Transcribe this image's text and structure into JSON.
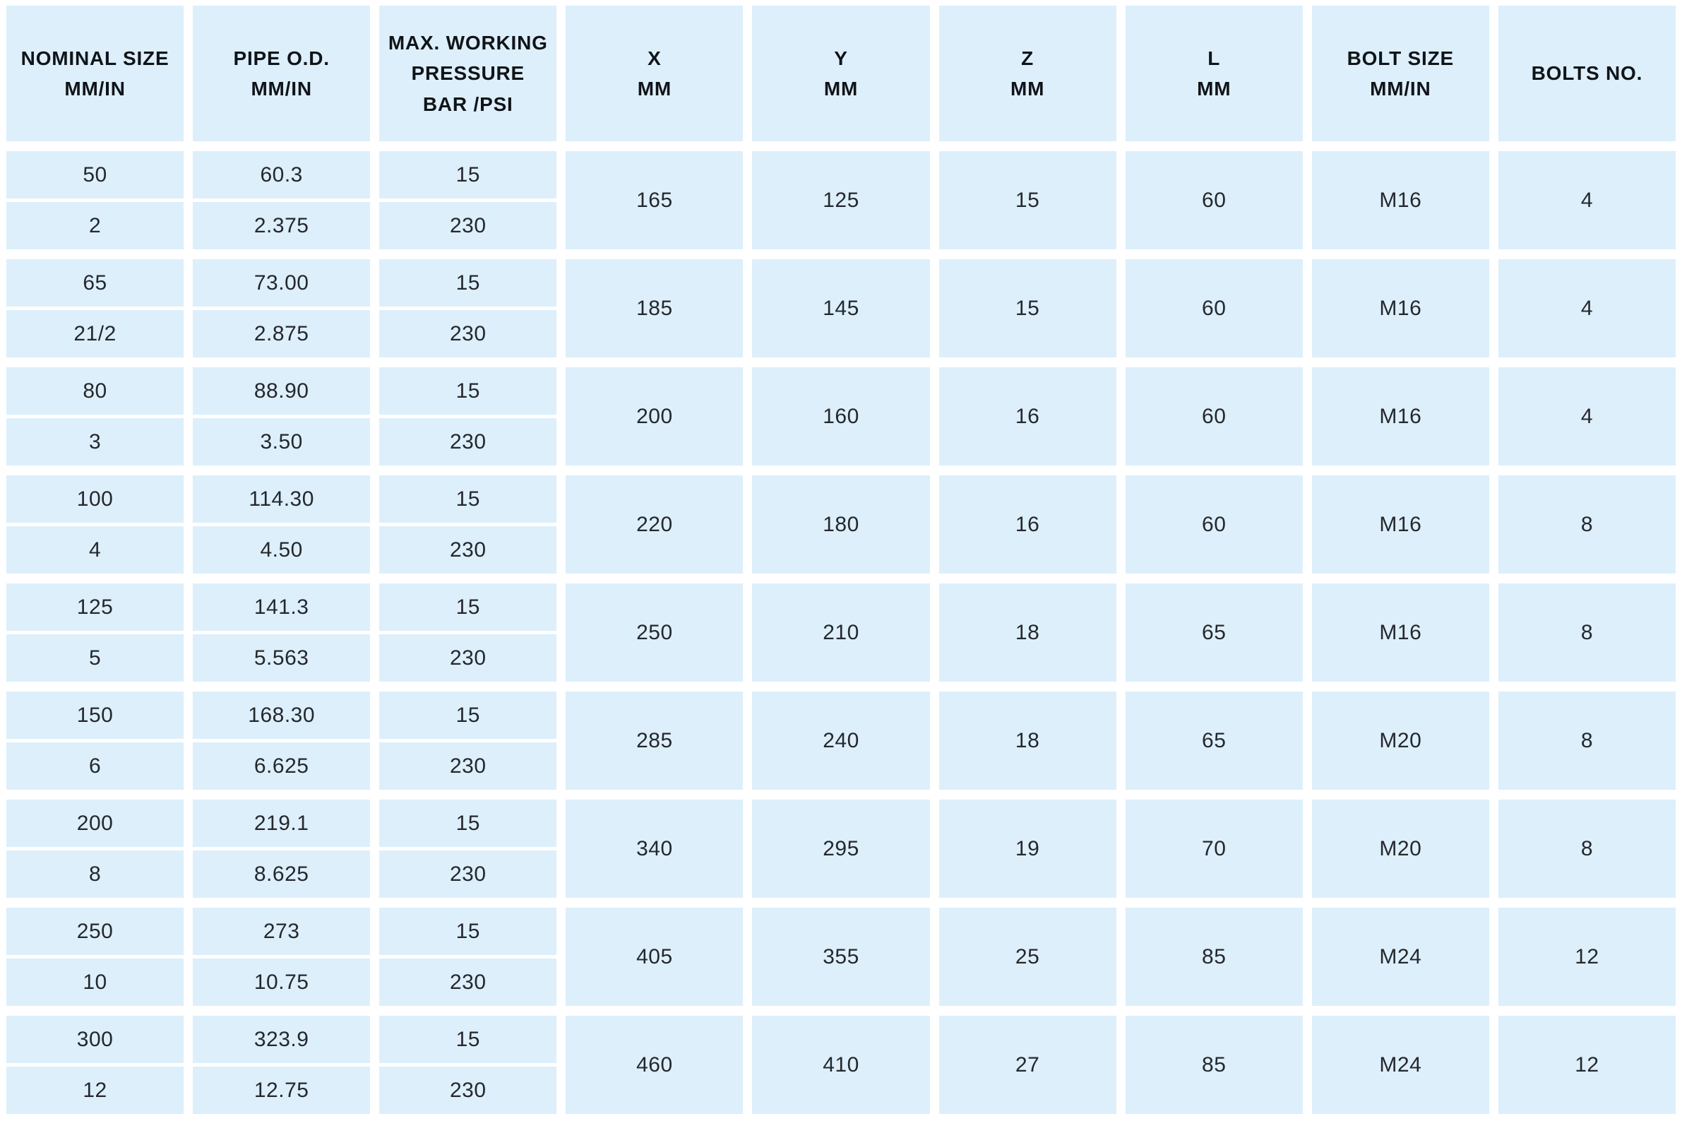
{
  "table": {
    "headers": {
      "nominal_size": "NOMINAL SIZE\nMM/IN",
      "pipe_od": "PIPE O.D.\nMM/IN",
      "max_working_pressure": "MAX. WORKING\nPRESSURE\nBAR /PSI",
      "x": "X\nMM",
      "y": "Y\nMM",
      "z": "Z\nMM",
      "l": "L\nMM",
      "bolt_size": "BOLT SIZE\nMM/IN",
      "bolts_no": "BOLTS NO."
    },
    "rows": [
      {
        "nominal_mm": "50",
        "nominal_in": "2",
        "od_mm": "60.3",
        "od_in": "2.375",
        "bar": "15",
        "psi": "230",
        "x": "165",
        "y": "125",
        "z": "15",
        "l": "60",
        "bolt_size": "M16",
        "bolts_no": "4"
      },
      {
        "nominal_mm": "65",
        "nominal_in": "21/2",
        "od_mm": "73.00",
        "od_in": "2.875",
        "bar": "15",
        "psi": "230",
        "x": "185",
        "y": "145",
        "z": "15",
        "l": "60",
        "bolt_size": "M16",
        "bolts_no": "4"
      },
      {
        "nominal_mm": "80",
        "nominal_in": "3",
        "od_mm": "88.90",
        "od_in": "3.50",
        "bar": "15",
        "psi": "230",
        "x": "200",
        "y": "160",
        "z": "16",
        "l": "60",
        "bolt_size": "M16",
        "bolts_no": "4"
      },
      {
        "nominal_mm": "100",
        "nominal_in": "4",
        "od_mm": "114.30",
        "od_in": "4.50",
        "bar": "15",
        "psi": "230",
        "x": "220",
        "y": "180",
        "z": "16",
        "l": "60",
        "bolt_size": "M16",
        "bolts_no": "8"
      },
      {
        "nominal_mm": "125",
        "nominal_in": "5",
        "od_mm": "141.3",
        "od_in": "5.563",
        "bar": "15",
        "psi": "230",
        "x": "250",
        "y": "210",
        "z": "18",
        "l": "65",
        "bolt_size": "M16",
        "bolts_no": "8"
      },
      {
        "nominal_mm": "150",
        "nominal_in": "6",
        "od_mm": "168.30",
        "od_in": "6.625",
        "bar": "15",
        "psi": "230",
        "x": "285",
        "y": "240",
        "z": "18",
        "l": "65",
        "bolt_size": "M20",
        "bolts_no": "8"
      },
      {
        "nominal_mm": "200",
        "nominal_in": "8",
        "od_mm": "219.1",
        "od_in": "8.625",
        "bar": "15",
        "psi": "230",
        "x": "340",
        "y": "295",
        "z": "19",
        "l": "70",
        "bolt_size": "M20",
        "bolts_no": "8"
      },
      {
        "nominal_mm": "250",
        "nominal_in": "10",
        "od_mm": "273",
        "od_in": "10.75",
        "bar": "15",
        "psi": "230",
        "x": "405",
        "y": "355",
        "z": "25",
        "l": "85",
        "bolt_size": "M24",
        "bolts_no": "12"
      },
      {
        "nominal_mm": "300",
        "nominal_in": "12",
        "od_mm": "323.9",
        "od_in": "12.75",
        "bar": "15",
        "psi": "230",
        "x": "460",
        "y": "410",
        "z": "27",
        "l": "85",
        "bolt_size": "M24",
        "bolts_no": "12"
      }
    ]
  },
  "colors": {
    "cell_bg": "#ddeffb",
    "header_text": "#101418",
    "data_text": "#24282d",
    "background": "#ffffff"
  }
}
